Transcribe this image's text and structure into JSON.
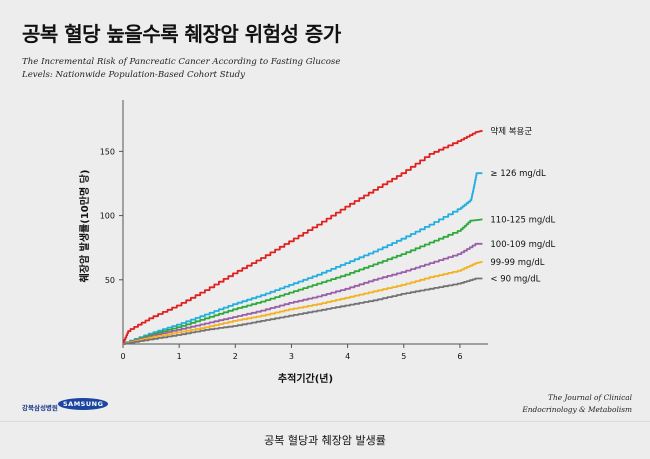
{
  "title": "공복 혈당 높을수록 췌장암 위험성 증가",
  "subtitle_line1": "The Incremental Risk of Pancreatic Cancer According to Fasting Glucose",
  "subtitle_line2": "Levels: Nationwide Population-Based Cohort Study",
  "journal_line1": "The Journal of Clinical",
  "journal_line2": "Endocrinology & Metabolism",
  "logo_left": "강북삼성병원",
  "logo_samsung": "SAMSUNG",
  "footer": "공복 혈당과 췌장암 발생률",
  "colors": {
    "axis": "#555555",
    "text": "#111111"
  },
  "chart_data": {
    "type": "line",
    "title": "공복 혈당 높을수록 췌장암 위험성 증가",
    "xlabel": "추적기간(년)",
    "ylabel": "췌장암 발생률(10만명 당)",
    "xlim": [
      0,
      6.5
    ],
    "ylim": [
      0,
      190
    ],
    "xticks": [
      0,
      1,
      2,
      3,
      4,
      5,
      6
    ],
    "yticks": [
      50,
      100,
      150
    ],
    "grid": false,
    "legend": "labels at line ends",
    "series": [
      {
        "name": "약제 복용군",
        "color": "#e0201f",
        "x": [
          0,
          0.1,
          0.5,
          1,
          1.5,
          2,
          2.5,
          3,
          3.5,
          4,
          4.5,
          5,
          5.5,
          6,
          6.3,
          6.4
        ],
        "y": [
          0,
          10,
          20,
          30,
          42,
          55,
          67,
          80,
          93,
          107,
          120,
          133,
          148,
          158,
          165,
          166
        ]
      },
      {
        "name": "≥ 126 mg/dL",
        "color": "#23aee0",
        "x": [
          0,
          0.5,
          1,
          1.5,
          2,
          2.5,
          3,
          3.5,
          4,
          4.5,
          5,
          5.5,
          6,
          6.2,
          6.25,
          6.3,
          6.4
        ],
        "y": [
          0,
          8,
          15,
          23,
          31,
          38,
          46,
          54,
          63,
          72,
          82,
          93,
          105,
          112,
          122,
          133,
          133
        ]
      },
      {
        "name": "110-125 mg/dL",
        "color": "#2eaa3a",
        "x": [
          0,
          0.5,
          1,
          1.5,
          2,
          2.5,
          3,
          3.5,
          4,
          4.5,
          5,
          5.5,
          6,
          6.2,
          6.4
        ],
        "y": [
          0,
          7,
          13,
          20,
          27,
          33,
          40,
          47,
          54,
          62,
          70,
          79,
          88,
          96,
          97
        ]
      },
      {
        "name": "100-109 mg/dL",
        "color": "#9a5fa8",
        "x": [
          0,
          0.5,
          1,
          1.5,
          2,
          2.5,
          3,
          3.5,
          4,
          4.5,
          5,
          5.5,
          6,
          6.3,
          6.4
        ],
        "y": [
          0,
          6,
          11,
          16,
          21,
          26,
          32,
          37,
          43,
          50,
          56,
          63,
          70,
          78,
          78
        ]
      },
      {
        "name": "99-99 mg/dL",
        "color": "#f4b221",
        "x": [
          0,
          0.5,
          1,
          1.5,
          2,
          2.5,
          3,
          3.5,
          4,
          4.5,
          5,
          5.5,
          6,
          6.3,
          6.4
        ],
        "y": [
          0,
          5,
          9,
          13,
          18,
          22,
          27,
          31,
          36,
          41,
          46,
          52,
          57,
          63,
          64
        ]
      },
      {
        "name": "< 90 mg/dL",
        "color": "#737373",
        "x": [
          0,
          0.5,
          1,
          1.5,
          2,
          2.5,
          3,
          3.5,
          4,
          4.5,
          5,
          5.5,
          6,
          6.3,
          6.4
        ],
        "y": [
          0,
          3.5,
          7,
          11,
          14,
          18,
          22,
          26,
          30,
          34,
          39,
          43,
          47,
          51,
          51
        ]
      }
    ]
  }
}
